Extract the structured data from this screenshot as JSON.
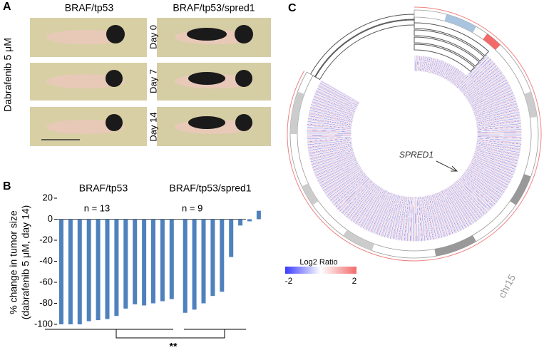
{
  "panel_a": {
    "label": "A",
    "columns": [
      "BRAF/tp53",
      "BRAF/tp53/spred1"
    ],
    "rows": [
      "Day 0",
      "Day 7",
      "Day 14"
    ],
    "treatment": "Dabrafenib 5 μM"
  },
  "chart_data": {
    "type": "bar",
    "label": "B",
    "ylabel": [
      "% change in tumor size",
      "(dabrafenib 5 μM, day 14)"
    ],
    "series": [
      {
        "name": "BRAF/tp53",
        "n_label": "n = 13",
        "color": "#4f81bd",
        "values": [
          -100,
          -100,
          -100,
          -97,
          -96,
          -95,
          -92,
          -85,
          -81,
          -82,
          -80,
          -78,
          -76
        ]
      },
      {
        "name": "BRAF/tp53/spred1",
        "n_label": "n = 9",
        "color": "#4f81bd",
        "values": [
          -89,
          -86,
          -80,
          -73,
          -69,
          -36,
          -6,
          -2,
          8
        ]
      }
    ],
    "ylim": [
      -100,
      20
    ],
    "yticks": [
      -100,
      -80,
      -60,
      -40,
      -20,
      0,
      20
    ],
    "significance": "**"
  },
  "panel_c": {
    "label": "C",
    "gene": "SPRED1",
    "chromosome": "chr15",
    "legend_title": "Log2 Ratio",
    "legend_min": "-2",
    "legend_max": "2"
  }
}
